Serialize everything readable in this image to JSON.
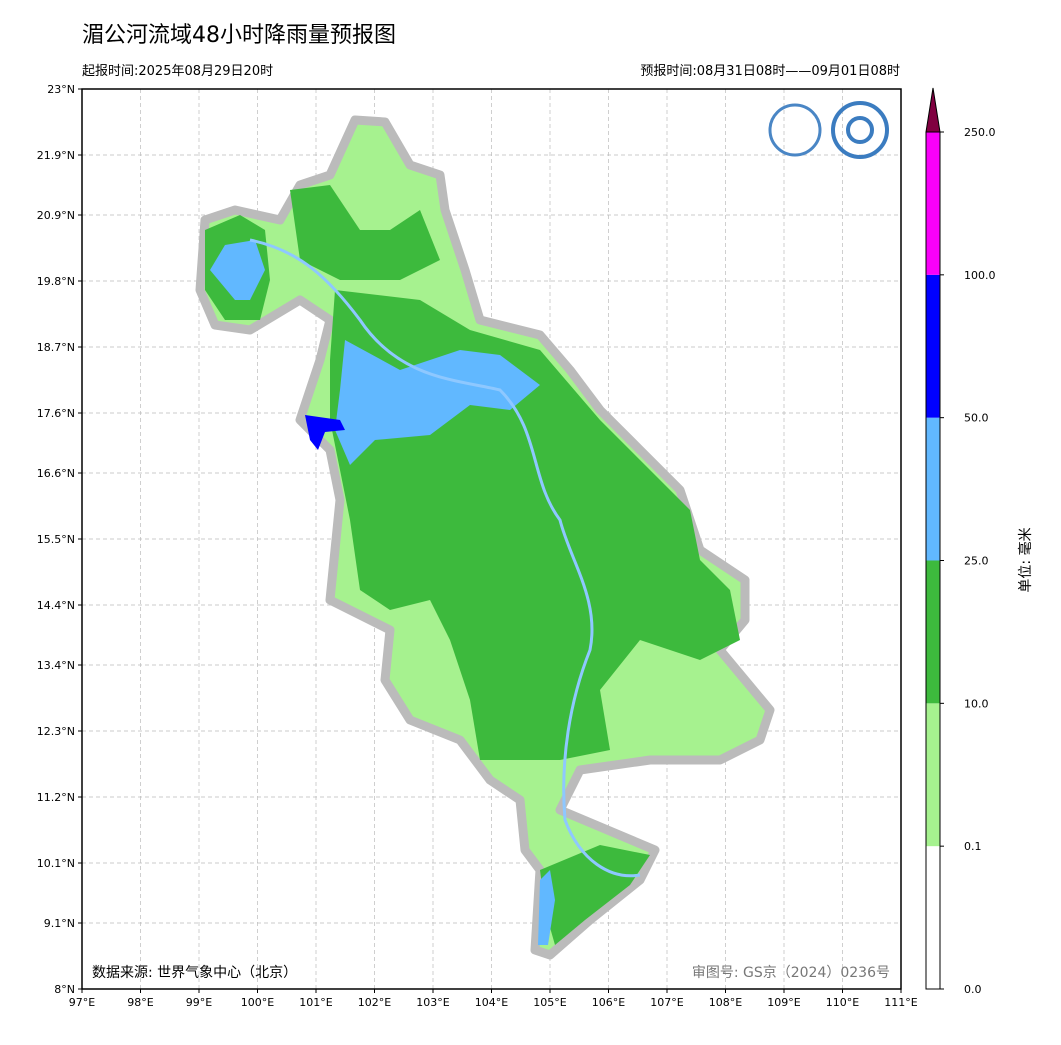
{
  "title": "湄公河流域48小时降雨量预报图",
  "issue_time": "起报时间:2025年08月29日20时",
  "forecast_time": "预报时间:08月31日08时——09月01日08时",
  "map": {
    "lat_ticks": [
      {
        "value": 23,
        "label": "23°N"
      },
      {
        "value": 21.9,
        "label": "21.9°N"
      },
      {
        "value": 20.9,
        "label": "20.9°N"
      },
      {
        "value": 19.8,
        "label": "19.8°N"
      },
      {
        "value": 18.7,
        "label": "18.7°N"
      },
      {
        "value": 17.6,
        "label": "17.6°N"
      },
      {
        "value": 16.6,
        "label": "16.6°N"
      },
      {
        "value": 15.5,
        "label": "15.5°N"
      },
      {
        "value": 14.4,
        "label": "14.4°N"
      },
      {
        "value": 13.4,
        "label": "13.4°N"
      },
      {
        "value": 12.3,
        "label": "12.3°N"
      },
      {
        "value": 11.2,
        "label": "11.2°N"
      },
      {
        "value": 10.1,
        "label": "10.1°N"
      },
      {
        "value": 9.1,
        "label": "9.1°N"
      },
      {
        "value": 8,
        "label": "8°N"
      }
    ],
    "lon_ticks": [
      {
        "value": 97,
        "label": "97°E"
      },
      {
        "value": 98,
        "label": "98°E"
      },
      {
        "value": 99,
        "label": "99°E"
      },
      {
        "value": 100,
        "label": "100°E"
      },
      {
        "value": 101,
        "label": "101°E"
      },
      {
        "value": 102,
        "label": "102°E"
      },
      {
        "value": 103,
        "label": "103°E"
      },
      {
        "value": 104,
        "label": "104°E"
      },
      {
        "value": 105,
        "label": "105°E"
      },
      {
        "value": 106,
        "label": "106°E"
      },
      {
        "value": 107,
        "label": "107°E"
      },
      {
        "value": 108,
        "label": "108°E"
      },
      {
        "value": 109,
        "label": "109°E"
      },
      {
        "value": 110,
        "label": "110°E"
      },
      {
        "value": 111,
        "label": "111°E"
      }
    ],
    "grid": true
  },
  "colorbar": {
    "unit": "单位: 毫米",
    "levels": [
      {
        "value": 0,
        "label": "0.0"
      },
      {
        "value": 0.1,
        "label": "0.1"
      },
      {
        "value": 10,
        "label": "10.0"
      },
      {
        "value": 25,
        "label": "25.0"
      },
      {
        "value": 50,
        "label": "50.0"
      },
      {
        "value": 100,
        "label": "100.0"
      },
      {
        "value": 250,
        "label": "250.0"
      }
    ],
    "colors": [
      "#ffffff",
      "#a6f28f",
      "#3dba3d",
      "#61b8ff",
      "#0000ff",
      "#fa00fa",
      "#800040"
    ]
  },
  "source": "数据来源: 世界气象中心（北京）",
  "review_no": "审图号: GS京（2024）0236号"
}
